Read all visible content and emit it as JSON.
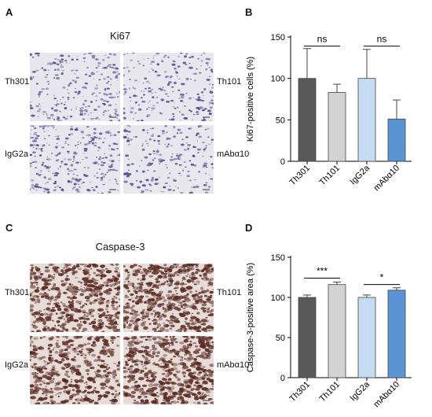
{
  "panels": {
    "A": {
      "letter": "A",
      "title": "Ki67",
      "labels": [
        "Th301",
        "Th101",
        "IgG2a",
        "mAbα10"
      ]
    },
    "B": {
      "letter": "B"
    },
    "C": {
      "letter": "C",
      "title": "Caspase-3",
      "labels": [
        "Th301",
        "Th101",
        "IgG2a",
        "mAbα10"
      ]
    },
    "D": {
      "letter": "D"
    }
  },
  "colors": {
    "Th301": "#595959",
    "Th101": "#d3d3d3",
    "IgG2a": "#c5dcf2",
    "mAba10": "#5b94d2",
    "ki67_bg": "#e9e7ee",
    "ki67_cell": "#4e4b8d",
    "casp_bg": "#e7dcd8",
    "casp_cell": "#5a2b22"
  },
  "chart_data": [
    {
      "type": "bar",
      "title": "",
      "categories": [
        "Th301",
        "Th101",
        "IgG2a",
        "mAbα10"
      ],
      "values": [
        100,
        83,
        100,
        51
      ],
      "errors": [
        36,
        10,
        35,
        23
      ],
      "ylabel": "Ki67-positive cells (%)",
      "xlabel": "",
      "ylim": [
        0,
        150
      ],
      "yticks": [
        "0",
        "50",
        "100",
        "150"
      ],
      "annotations": [
        {
          "pair": [
            0,
            1
          ],
          "text": "ns",
          "y": 139
        },
        {
          "pair": [
            2,
            3
          ],
          "text": "ns",
          "y": 139
        }
      ]
    },
    {
      "type": "bar",
      "title": "",
      "categories": [
        "Th301",
        "Th101",
        "IgG2a",
        "mAbα10"
      ],
      "values": [
        100,
        116,
        100,
        109
      ],
      "errors": [
        3,
        3,
        3,
        3
      ],
      "ylabel": "Caspase-3-positive area (%)",
      "xlabel": "",
      "ylim": [
        0,
        150
      ],
      "yticks": [
        "0",
        "50",
        "100",
        "150"
      ],
      "annotations": [
        {
          "pair": [
            0,
            1
          ],
          "text": "***",
          "y": 124
        },
        {
          "pair": [
            2,
            3
          ],
          "text": "*",
          "y": 116
        }
      ]
    }
  ]
}
